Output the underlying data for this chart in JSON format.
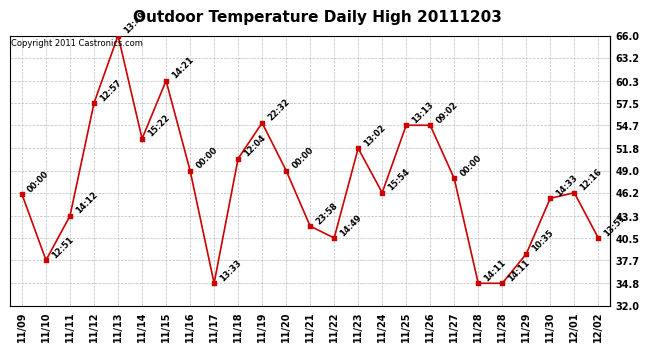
{
  "title": "Outdoor Temperature Daily High 20111203",
  "copyright": "Copyright 2011 Castronics.com",
  "dates": [
    "11/09",
    "11/10",
    "11/11",
    "11/12",
    "11/13",
    "11/14",
    "11/15",
    "11/16",
    "11/17",
    "11/18",
    "11/19",
    "11/20",
    "11/21",
    "11/22",
    "11/23",
    "11/24",
    "11/25",
    "11/26",
    "11/27",
    "11/28",
    "11/28",
    "11/29",
    "11/30",
    "12/01",
    "12/02"
  ],
  "values": [
    46.0,
    37.7,
    43.3,
    57.5,
    66.0,
    53.0,
    60.3,
    49.0,
    34.8,
    50.5,
    55.0,
    49.0,
    42.0,
    40.5,
    51.8,
    46.2,
    54.7,
    54.7,
    48.0,
    34.8,
    34.8,
    38.5,
    45.5,
    46.2,
    40.5
  ],
  "annotations": [
    "00:00",
    "12:51",
    "14:12",
    "12:57",
    "13:49",
    "15:22",
    "14:21",
    "00:00",
    "13:33",
    "12:04",
    "22:32",
    "00:00",
    "23:58",
    "14:49",
    "13:02",
    "15:54",
    "13:13",
    "09:02",
    "00:00",
    "14:11",
    "14:11",
    "10:35",
    "14:33",
    "12:16",
    "13:51"
  ],
  "line_color": "#cc0000",
  "marker_color": "#cc0000",
  "bg_color": "#ffffff",
  "grid_color": "#bbbbbb",
  "ylim_min": 32.0,
  "ylim_max": 66.0,
  "yticks": [
    32.0,
    34.8,
    37.7,
    40.5,
    43.3,
    46.2,
    49.0,
    51.8,
    54.7,
    57.5,
    60.3,
    63.2,
    66.0
  ],
  "title_fontsize": 11,
  "tick_fontsize": 7,
  "annotation_fontsize": 6,
  "copyright_fontsize": 6
}
